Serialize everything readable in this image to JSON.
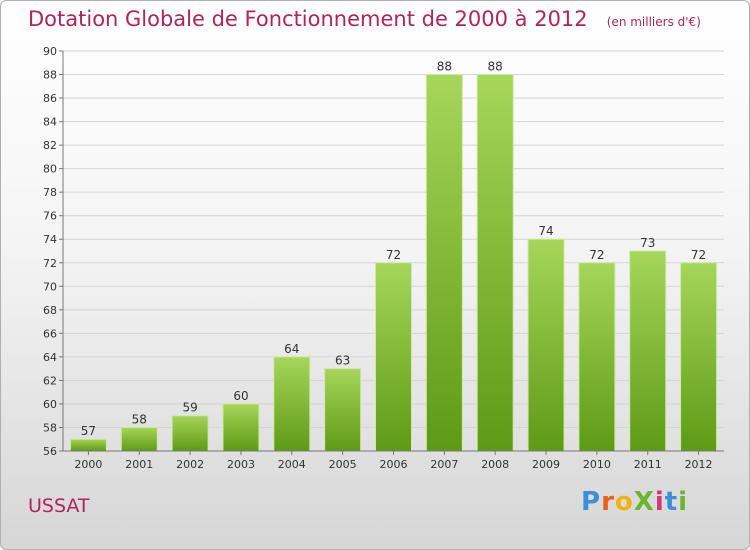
{
  "title": "Dotation Globale de Fonctionnement de 2000 à 2012",
  "unit_label": "(en milliers d'€)",
  "commune": "USSAT",
  "logo": {
    "text": "ProXiti",
    "colors": [
      "#3a8fd6",
      "#e8601c",
      "#f2b20c",
      "#6cb52d",
      "#d6357c",
      "#3a8fd6",
      "#6cb52d"
    ]
  },
  "colors": {
    "title": "#b0245a",
    "bar_top": "#a6d65a",
    "bar_bottom": "#5e9a16"
  },
  "chart_data": {
    "type": "bar",
    "categories": [
      "2000",
      "2001",
      "2002",
      "2003",
      "2004",
      "2005",
      "2006",
      "2007",
      "2008",
      "2009",
      "2010",
      "2011",
      "2012"
    ],
    "values": [
      57,
      58,
      59,
      60,
      64,
      63,
      72,
      88,
      88,
      74,
      72,
      73,
      72
    ],
    "ylim": [
      56,
      90
    ],
    "yticks": [
      56,
      58,
      60,
      62,
      64,
      66,
      68,
      70,
      72,
      74,
      76,
      78,
      80,
      82,
      84,
      86,
      88,
      90
    ],
    "grid": true
  }
}
